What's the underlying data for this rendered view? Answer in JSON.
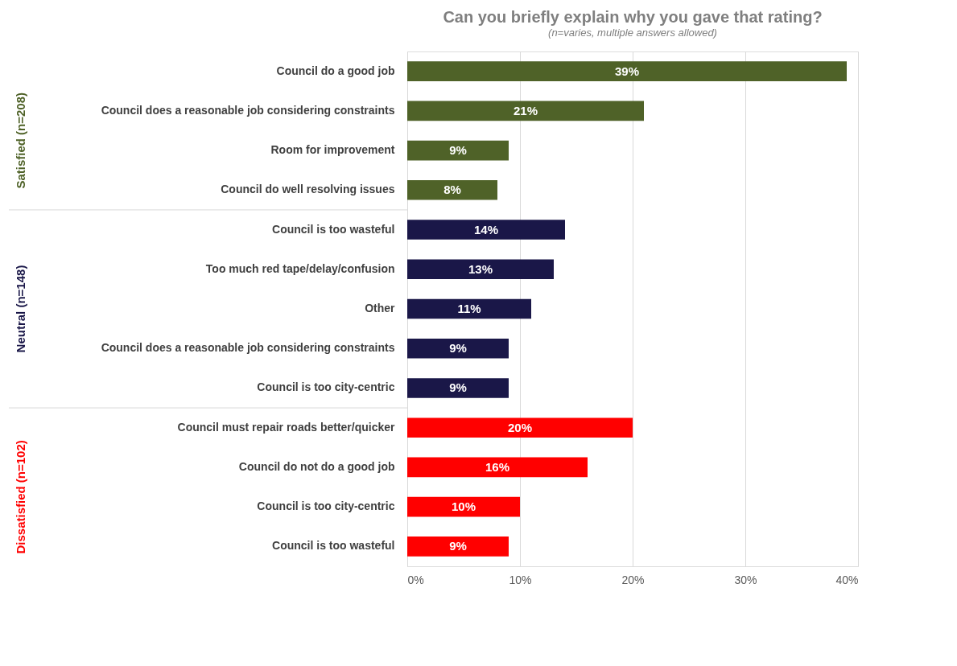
{
  "chart_data": {
    "type": "bar",
    "orientation": "horizontal",
    "title": "Can you briefly explain why you gave that rating?",
    "subtitle": "(n=varies, multiple answers allowed)",
    "categories": [
      "Council do a good job",
      "Council does a reasonable job considering constraints",
      "Room for improvement",
      "Council do well resolving issues",
      "Council is too wasteful",
      "Too much red tape/delay/confusion",
      "Other",
      "Council does a reasonable job considering constraints",
      "Council is too city-centric",
      "Council must repair roads better/quicker",
      "Council do not do a good job",
      "Council is too city-centric",
      "Council is too wasteful"
    ],
    "series": [
      {
        "name": "Satisfied (n=208)",
        "color": "#4f6228",
        "values": [
          39,
          21,
          9,
          8,
          null,
          null,
          null,
          null,
          null,
          null,
          null,
          null,
          null
        ],
        "value_labels": [
          "39%",
          "21%",
          "9%",
          "8%",
          null,
          null,
          null,
          null,
          null,
          null,
          null,
          null,
          null
        ]
      },
      {
        "name": "Neutral (n=148)",
        "color": "#1a1748",
        "values": [
          null,
          null,
          null,
          null,
          14,
          13,
          11,
          9,
          9,
          null,
          null,
          null,
          null
        ],
        "value_labels": [
          null,
          null,
          null,
          null,
          "14%",
          "13%",
          "11%",
          "9%",
          "9%",
          null,
          null,
          null,
          null
        ]
      },
      {
        "name": "Dissatisfied (n=102)",
        "color": "#ff0000",
        "values": [
          null,
          null,
          null,
          null,
          null,
          null,
          null,
          null,
          null,
          20,
          16,
          10,
          9
        ],
        "value_labels": [
          null,
          null,
          null,
          null,
          null,
          null,
          null,
          null,
          null,
          "20%",
          "16%",
          "10%",
          "9%"
        ]
      }
    ],
    "xlim": [
      0,
      40
    ],
    "xticks": [
      {
        "value": 0,
        "label": "0%"
      },
      {
        "value": 10,
        "label": "10%"
      },
      {
        "value": 20,
        "label": "20%"
      },
      {
        "value": 30,
        "label": "30%"
      },
      {
        "value": 40,
        "label": "40%"
      }
    ],
    "grid": "x",
    "legend": false
  }
}
